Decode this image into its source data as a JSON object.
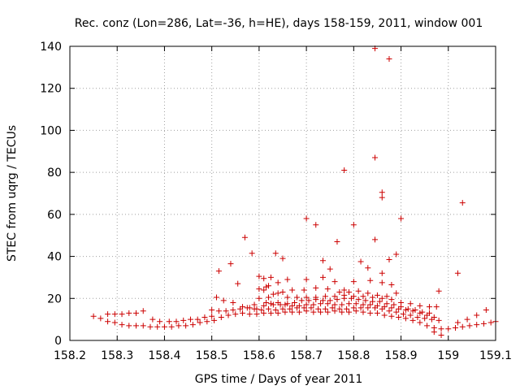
{
  "chart_data": {
    "type": "scatter",
    "title": "Rec. conz (Lon=286, Lat=-36, h=HE), days 158-159, 2011, window 001",
    "xlabel": "GPS time / Days of year 2011",
    "ylabel": "STEC from uqrg / TECUs",
    "xlim": [
      158.2,
      159.1
    ],
    "ylim": [
      0,
      140
    ],
    "x_ticks": [
      158.2,
      158.3,
      158.4,
      158.5,
      158.6,
      158.7,
      158.8,
      158.9,
      159,
      159.1
    ],
    "x_tick_labels": [
      "158.2",
      "158.3",
      "158.4",
      "158.5",
      "158.6",
      "158.7",
      "158.8",
      "158.9",
      "159",
      "159.1"
    ],
    "y_ticks": [
      0,
      20,
      40,
      60,
      80,
      100,
      120,
      140
    ],
    "y_tick_labels": [
      "0",
      "20",
      "40",
      "60",
      "80",
      "100",
      "120",
      "140"
    ],
    "grid": true,
    "marker": "+",
    "color": "#cc0000",
    "series": [
      {
        "name": "STEC",
        "x": [
          158.25,
          158.265,
          158.28,
          158.295,
          158.31,
          158.325,
          158.34,
          158.28,
          158.295,
          158.31,
          158.325,
          158.34,
          158.355,
          158.37,
          158.385,
          158.4,
          158.415,
          158.43,
          158.445,
          158.46,
          158.475,
          158.49,
          158.505,
          158.52,
          158.535,
          158.55,
          158.565,
          158.58,
          158.595,
          158.61,
          158.625,
          158.64,
          158.655,
          158.67,
          158.685,
          158.7,
          158.715,
          158.73,
          158.745,
          158.76,
          158.775,
          158.79,
          158.805,
          158.82,
          158.835,
          158.85,
          158.865,
          158.88,
          158.895,
          158.91,
          158.925,
          158.94,
          158.955,
          158.97,
          158.985,
          159.0,
          159.015,
          159.03,
          159.045,
          159.06,
          159.075,
          159.09,
          159.1,
          158.355,
          158.375,
          158.39,
          158.41,
          158.425,
          158.44,
          158.455,
          158.47,
          158.485,
          158.5,
          158.515,
          158.53,
          158.545,
          158.56,
          158.575,
          158.59,
          158.605,
          158.62,
          158.635,
          158.65,
          158.665,
          158.68,
          158.695,
          158.71,
          158.725,
          158.74,
          158.755,
          158.77,
          158.785,
          158.8,
          158.815,
          158.83,
          158.845,
          158.86,
          158.875,
          158.89,
          158.905,
          158.92,
          158.935,
          158.95,
          158.965,
          158.98,
          158.5,
          158.51,
          158.525,
          158.545,
          158.565,
          158.58,
          158.595,
          158.61,
          158.625,
          158.64,
          158.655,
          158.67,
          158.685,
          158.7,
          158.715,
          158.73,
          158.745,
          158.76,
          158.775,
          158.79,
          158.805,
          158.82,
          158.835,
          158.85,
          158.865,
          158.88,
          158.895,
          158.91,
          158.925,
          158.94,
          158.955,
          158.97,
          158.6,
          158.615,
          158.63,
          158.645,
          158.66,
          158.675,
          158.69,
          158.705,
          158.72,
          158.735,
          158.75,
          158.765,
          158.78,
          158.795,
          158.81,
          158.825,
          158.84,
          158.855,
          158.87,
          158.885,
          158.9,
          158.915,
          158.93,
          158.945,
          158.96,
          158.975,
          158.59,
          158.61,
          158.62,
          158.64,
          158.66,
          158.68,
          158.7,
          158.72,
          158.74,
          158.76,
          158.78,
          158.8,
          158.82,
          158.84,
          158.86,
          158.88,
          158.9,
          158.92,
          158.94,
          158.96,
          158.97,
          158.985,
          159.02,
          159.04,
          159.06,
          159.08,
          158.6,
          158.615,
          158.63,
          158.65,
          158.67,
          158.695,
          158.72,
          158.745,
          158.77,
          158.79,
          158.81,
          158.83,
          158.85,
          158.87,
          158.89,
          158.62,
          158.64,
          158.66,
          158.7,
          158.735,
          158.76,
          158.8,
          158.835,
          158.86,
          158.88,
          158.57,
          158.585,
          158.6,
          158.61,
          158.625,
          158.635,
          158.65,
          158.7,
          158.72,
          158.735,
          158.75,
          158.765,
          158.78,
          158.8,
          158.815,
          158.83,
          158.845,
          158.86,
          158.875,
          158.89,
          158.9,
          158.515,
          158.54,
          158.555,
          158.98,
          159.02,
          159.03,
          158.845,
          158.875,
          158.845,
          158.86,
          158.86,
          158.78
        ],
        "y": [
          11.5,
          10.5,
          9,
          8.5,
          7.5,
          7,
          7,
          12.5,
          12.5,
          12.5,
          13,
          13,
          7,
          6.5,
          6.5,
          6.5,
          6.5,
          7,
          7,
          7.5,
          8.5,
          9,
          9.5,
          11,
          12,
          12.5,
          13,
          12.5,
          12.5,
          13,
          13,
          13,
          13.5,
          13.5,
          13.5,
          14,
          13.5,
          13.5,
          13.5,
          14,
          13.5,
          13.5,
          14,
          13.5,
          13,
          13,
          12,
          11.5,
          11,
          10.5,
          9.5,
          8.5,
          7,
          6,
          5.5,
          5.5,
          6,
          6.5,
          7,
          7.5,
          8,
          8.5,
          9,
          14,
          10,
          9,
          9,
          9,
          9.5,
          10,
          10,
          11,
          11.5,
          14,
          14,
          14.5,
          15,
          15.5,
          15,
          14.5,
          15,
          14.5,
          15,
          15,
          15.5,
          15.5,
          15.5,
          15,
          15,
          15.5,
          15,
          15,
          15.5,
          15.5,
          15.5,
          15.5,
          15,
          14,
          13.5,
          12.5,
          12,
          11,
          10.5,
          10,
          9.5,
          14.5,
          20.5,
          19,
          18,
          16,
          15.5,
          15,
          16.5,
          17.5,
          18,
          17,
          16.5,
          16.5,
          17,
          17,
          17.5,
          17.5,
          17,
          17,
          17.5,
          17.5,
          17,
          17,
          16.5,
          16,
          15.5,
          15,
          14.5,
          14,
          13,
          12,
          11,
          20,
          18,
          17,
          17,
          17.5,
          18,
          19,
          19,
          19.5,
          19,
          19,
          19.5,
          20,
          20,
          19.5,
          19,
          18.5,
          18.5,
          17.5,
          17,
          16,
          15,
          14.5,
          13.5,
          13,
          16,
          17,
          24,
          20.5,
          22.5,
          20.5,
          20.5,
          20.5,
          20.5,
          21,
          21,
          21.5,
          21,
          21,
          20.5,
          20,
          19.5,
          18,
          17.5,
          16.5,
          16,
          4,
          2.5,
          8.5,
          10,
          12,
          14.5,
          24.5,
          25.5,
          22,
          23,
          24,
          24,
          25,
          24.5,
          23,
          23,
          23.5,
          22.5,
          21.5,
          21,
          22.5,
          26,
          27.5,
          29,
          29,
          30,
          28,
          28,
          28.5,
          27.5,
          26.5,
          49,
          41.5,
          30.5,
          29.5,
          30,
          41.5,
          39,
          58,
          55,
          38,
          34,
          47,
          24,
          55,
          37.5,
          34.5,
          48,
          32,
          38.5,
          41,
          58,
          33,
          36.5,
          27,
          23.5,
          32,
          65.5,
          87,
          134,
          139,
          68,
          70.5,
          81
        ]
      }
    ]
  }
}
